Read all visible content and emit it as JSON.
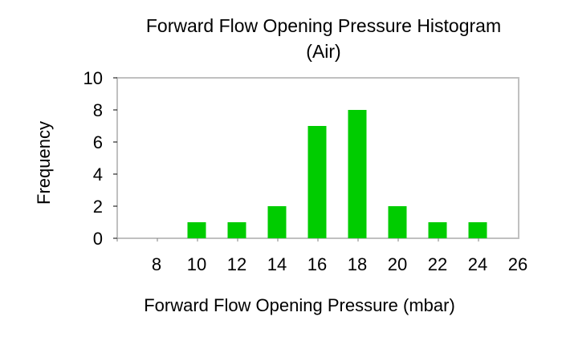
{
  "chart_data": {
    "type": "bar",
    "title": "Forward Flow Opening Pressure Histogram",
    "subtitle": "(Air)",
    "xlabel": "Forward Flow Opening Pressure (mbar)",
    "ylabel": "Frequency",
    "categories": [
      "8",
      "10",
      "12",
      "14",
      "16",
      "18",
      "20",
      "22",
      "24",
      "26"
    ],
    "values": [
      0,
      1,
      1,
      2,
      7,
      8,
      2,
      1,
      1,
      0
    ],
    "ylim": [
      0,
      10
    ],
    "yticks": [
      "0",
      "2",
      "4",
      "6",
      "8",
      "10"
    ],
    "grid": false,
    "legend": "none",
    "bar_color": "#00cc00",
    "plot_border_color": "#c0c0c0"
  }
}
